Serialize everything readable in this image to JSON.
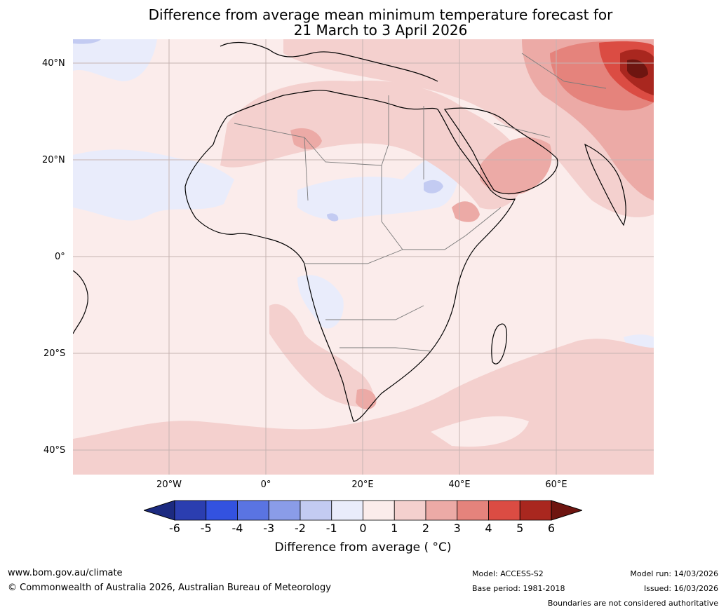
{
  "title_line1": "Difference from average mean minimum temperature forecast for",
  "title_line2": "21 March to 3 April 2026",
  "lat_labels": [
    "40°N",
    "20°N",
    "0°",
    "20°S",
    "40°S"
  ],
  "lon_labels": [
    "20°W",
    "0°",
    "20°E",
    "40°E",
    "60°E"
  ],
  "colorbar": {
    "ticks": [
      "-6",
      "-5",
      "-4",
      "-3",
      "-2",
      "-1",
      "0",
      "1",
      "2",
      "3",
      "4",
      "5",
      "6"
    ],
    "colors": [
      "#1c2a80",
      "#2b3eb0",
      "#3352e0",
      "#5a74e2",
      "#8a9ce8",
      "#c3cbf2",
      "#e9ecfb",
      "#fbeceb",
      "#f4d0ce",
      "#ecaaa6",
      "#e5837c",
      "#db4c43",
      "#a9271f",
      "#6e1510"
    ],
    "label": "Difference from average ( °C)"
  },
  "footer": {
    "website": "www.bom.gov.au/climate",
    "copyright": "© Commonwealth of Australia 2026, Australian Bureau of Meteorology",
    "model": "Model: ACCESS-S2",
    "base_period": "Base period: 1981-2018",
    "model_run": "Model run: 14/03/2026",
    "issued": "Issued: 16/03/2026",
    "disclaimer": "Boundaries are not considered authoritative"
  }
}
